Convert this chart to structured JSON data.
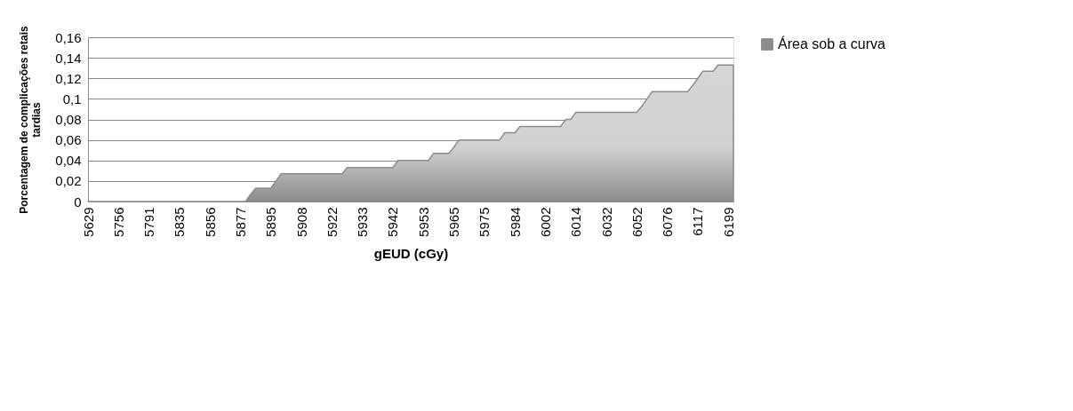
{
  "chart_data": {
    "type": "area",
    "xlabel": "gEUD (cGy)",
    "ylabel": "Porcentagem de complicações retais tardias",
    "categories": [
      "5629",
      null,
      null,
      null,
      null,
      null,
      "5756",
      null,
      null,
      null,
      null,
      null,
      "5791",
      null,
      null,
      null,
      null,
      null,
      "5835",
      null,
      null,
      null,
      null,
      null,
      "5856",
      null,
      null,
      null,
      null,
      null,
      "5877",
      null,
      null,
      null,
      null,
      null,
      "5895",
      null,
      null,
      null,
      null,
      null,
      "5908",
      null,
      null,
      null,
      null,
      null,
      "5922",
      null,
      null,
      null,
      null,
      null,
      "5933",
      null,
      null,
      null,
      null,
      null,
      "5942",
      null,
      null,
      null,
      null,
      null,
      "5953",
      null,
      null,
      null,
      null,
      null,
      "5965",
      null,
      null,
      null,
      null,
      null,
      "5975",
      null,
      null,
      null,
      null,
      null,
      "5984",
      null,
      null,
      null,
      null,
      null,
      "6002",
      null,
      null,
      null,
      null,
      null,
      "6014",
      null,
      null,
      null,
      null,
      null,
      "6032",
      null,
      null,
      null,
      null,
      null,
      "6052",
      null,
      null,
      null,
      null,
      null,
      "6076",
      null,
      null,
      null,
      null,
      null,
      "6117",
      null,
      null,
      null,
      null,
      null,
      "6199",
      null
    ],
    "series": [
      {
        "name": "Área sob a curva",
        "color": "#8c8c8c",
        "values": [
          0,
          0,
          0,
          0,
          0,
          0,
          0,
          0,
          0,
          0,
          0,
          0,
          0,
          0,
          0,
          0,
          0,
          0,
          0,
          0,
          0,
          0,
          0,
          0,
          0,
          0,
          0,
          0,
          0,
          0,
          0,
          0,
          0.007,
          0.013,
          0.013,
          0.013,
          0.013,
          0.02,
          0.027,
          0.027,
          0.027,
          0.027,
          0.027,
          0.027,
          0.027,
          0.027,
          0.027,
          0.027,
          0.027,
          0.027,
          0.027,
          0.033,
          0.033,
          0.033,
          0.033,
          0.033,
          0.033,
          0.033,
          0.033,
          0.033,
          0.033,
          0.04,
          0.04,
          0.04,
          0.04,
          0.04,
          0.04,
          0.04,
          0.047,
          0.047,
          0.047,
          0.047,
          0.053,
          0.06,
          0.06,
          0.06,
          0.06,
          0.06,
          0.06,
          0.06,
          0.06,
          0.06,
          0.067,
          0.067,
          0.067,
          0.073,
          0.073,
          0.073,
          0.073,
          0.073,
          0.073,
          0.073,
          0.073,
          0.073,
          0.08,
          0.08,
          0.087,
          0.087,
          0.087,
          0.087,
          0.087,
          0.087,
          0.087,
          0.087,
          0.087,
          0.087,
          0.087,
          0.087,
          0.087,
          0.093,
          0.1,
          0.107,
          0.107,
          0.107,
          0.107,
          0.107,
          0.107,
          0.107,
          0.107,
          0.113,
          0.12,
          0.127,
          0.127,
          0.127,
          0.133,
          0.133,
          0.133,
          0.133
        ]
      }
    ],
    "ylim": [
      0,
      0.16
    ],
    "yticks": [
      0,
      {
        "value": 0.02,
        "label": "0,02"
      },
      {
        "value": 0.04,
        "label": "0,04"
      },
      {
        "value": 0.06,
        "label": "0,06"
      },
      {
        "value": 0.08,
        "label": "0,08"
      },
      {
        "value": 0.1,
        "label": "0,1"
      },
      {
        "value": 0.12,
        "label": "0,12"
      },
      {
        "value": 0.14,
        "label": "0,14"
      },
      {
        "value": 0.16,
        "label": "0,16"
      }
    ],
    "grid": "y",
    "legend": "right"
  }
}
